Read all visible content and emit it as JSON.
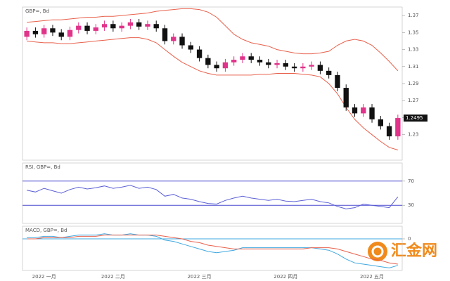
{
  "chart_data": [
    {
      "type": "candlestick",
      "title": "GBP=, Bd",
      "categories": [
        null,
        null,
        "2022 一月",
        null,
        null,
        null,
        null,
        null,
        null,
        null,
        "2022 二月",
        null,
        null,
        null,
        null,
        null,
        null,
        null,
        null,
        null,
        "2022 三月",
        null,
        null,
        null,
        null,
        null,
        null,
        null,
        null,
        null,
        "2022 四月",
        null,
        null,
        null,
        null,
        null,
        null,
        null,
        null,
        null,
        "2022 五月",
        null,
        null,
        null
      ],
      "open": [
        1.345,
        1.352,
        1.348,
        1.355,
        1.35,
        1.345,
        1.353,
        1.358,
        1.352,
        1.356,
        1.36,
        1.355,
        1.358,
        1.362,
        1.357,
        1.36,
        1.355,
        1.34,
        1.345,
        1.335,
        1.33,
        1.32,
        1.312,
        1.308,
        1.315,
        1.318,
        1.322,
        1.318,
        1.315,
        1.312,
        1.314,
        1.31,
        1.308,
        1.31,
        1.312,
        1.305,
        1.3,
        1.285,
        1.262,
        1.255,
        1.262,
        1.248,
        1.24,
        1.228
      ],
      "high": [
        1.356,
        1.356,
        1.359,
        1.359,
        1.354,
        1.357,
        1.362,
        1.362,
        1.36,
        1.364,
        1.364,
        1.362,
        1.366,
        1.366,
        1.364,
        1.364,
        1.359,
        1.349,
        1.349,
        1.339,
        1.334,
        1.324,
        1.316,
        1.319,
        1.322,
        1.326,
        1.326,
        1.322,
        1.319,
        1.318,
        1.318,
        1.314,
        1.314,
        1.316,
        1.316,
        1.309,
        1.304,
        1.289,
        1.266,
        1.266,
        1.266,
        1.252,
        1.244,
        1.2535
      ],
      "low": [
        1.341,
        1.344,
        1.344,
        1.346,
        1.341,
        1.341,
        1.349,
        1.348,
        1.348,
        1.352,
        1.351,
        1.351,
        1.354,
        1.353,
        1.353,
        1.351,
        1.336,
        1.336,
        1.331,
        1.326,
        1.316,
        1.308,
        1.304,
        1.304,
        1.311,
        1.314,
        1.314,
        1.311,
        1.308,
        1.308,
        1.306,
        1.304,
        1.304,
        1.306,
        1.301,
        1.296,
        1.281,
        1.258,
        1.251,
        1.251,
        1.244,
        1.236,
        1.224,
        1.224
      ],
      "close": [
        1.352,
        1.348,
        1.355,
        1.35,
        1.345,
        1.353,
        1.358,
        1.352,
        1.356,
        1.36,
        1.355,
        1.358,
        1.362,
        1.357,
        1.36,
        1.355,
        1.34,
        1.345,
        1.335,
        1.33,
        1.32,
        1.312,
        1.308,
        1.315,
        1.318,
        1.322,
        1.318,
        1.315,
        1.312,
        1.314,
        1.31,
        1.308,
        1.31,
        1.312,
        1.305,
        1.3,
        1.285,
        1.262,
        1.255,
        1.262,
        1.248,
        1.24,
        1.228,
        1.2495
      ],
      "up_color": "#e0338a",
      "down_color": "#111111",
      "last_label": "1.2495",
      "series": [
        {
          "color": "#e8604c",
          "values": [
            1.362,
            1.363,
            1.364,
            1.365,
            1.365,
            1.366,
            1.367,
            1.368,
            1.368,
            1.369,
            1.369,
            1.37,
            1.371,
            1.372,
            1.373,
            1.375,
            1.376,
            1.377,
            1.378,
            1.378,
            1.377,
            1.374,
            1.368,
            1.358,
            1.348,
            1.342,
            1.338,
            1.336,
            1.334,
            1.33,
            1.328,
            1.326,
            1.325,
            1.325,
            1.326,
            1.328,
            1.335,
            1.34,
            1.342,
            1.34,
            1.335,
            1.326,
            1.316,
            1.305
          ]
        },
        {
          "color": "#e8604c",
          "values": [
            1.34,
            1.339,
            1.338,
            1.338,
            1.337,
            1.337,
            1.338,
            1.339,
            1.34,
            1.341,
            1.342,
            1.343,
            1.344,
            1.344,
            1.342,
            1.338,
            1.33,
            1.322,
            1.315,
            1.31,
            1.305,
            1.302,
            1.3,
            1.3,
            1.3,
            1.3,
            1.3,
            1.301,
            1.301,
            1.302,
            1.302,
            1.302,
            1.301,
            1.3,
            1.298,
            1.29,
            1.278,
            1.262,
            1.248,
            1.238,
            1.23,
            1.222,
            1.215,
            1.212
          ]
        }
      ],
      "ylim": [
        1.2,
        1.38
      ],
      "yticks": [
        1.23,
        1.25,
        1.27,
        1.29,
        1.31,
        1.33,
        1.35,
        1.37
      ]
    },
    {
      "type": "line",
      "title": "RSI, GBP=, Bd",
      "series": [
        {
          "color": "#5b5fd6",
          "values": [
            55,
            52,
            58,
            54,
            50,
            56,
            60,
            57,
            59,
            62,
            58,
            60,
            63,
            58,
            60,
            56,
            45,
            48,
            42,
            40,
            36,
            33,
            32,
            38,
            42,
            45,
            42,
            40,
            38,
            40,
            37,
            36,
            38,
            40,
            36,
            34,
            28,
            24,
            26,
            32,
            30,
            28,
            26,
            44
          ]
        }
      ],
      "levels": [
        70,
        30
      ],
      "level_color": "#4a4ad0",
      "ylim": [
        0,
        100
      ],
      "yticks": [
        30,
        70
      ]
    },
    {
      "type": "line",
      "title": "MACD, GBP=, Bd",
      "series": [
        {
          "color": "#3fa8e0",
          "values": [
            0.001,
            0.001,
            0.002,
            0.002,
            0.001,
            0.002,
            0.003,
            0.003,
            0.003,
            0.004,
            0.003,
            0.003,
            0.004,
            0.003,
            0.003,
            0.002,
            -0.001,
            -0.002,
            -0.004,
            -0.006,
            -0.008,
            -0.01,
            -0.011,
            -0.01,
            -0.009,
            -0.007,
            -0.007,
            -0.007,
            -0.007,
            -0.007,
            -0.007,
            -0.007,
            -0.007,
            -0.007,
            -0.008,
            -0.009,
            -0.012,
            -0.016,
            -0.019,
            -0.02,
            -0.021,
            -0.022,
            -0.023,
            -0.021
          ]
        },
        {
          "color": "#e8604c",
          "values": [
            0.0,
            0.0,
            0.001,
            0.001,
            0.001,
            0.001,
            0.002,
            0.002,
            0.002,
            0.003,
            0.003,
            0.003,
            0.003,
            0.003,
            0.003,
            0.003,
            0.002,
            0.001,
            0.0,
            -0.002,
            -0.003,
            -0.005,
            -0.006,
            -0.007,
            -0.008,
            -0.008,
            -0.008,
            -0.008,
            -0.008,
            -0.008,
            -0.008,
            -0.008,
            -0.008,
            -0.007,
            -0.007,
            -0.007,
            -0.008,
            -0.01,
            -0.012,
            -0.014,
            -0.016,
            -0.017,
            -0.019,
            -0.02
          ]
        }
      ],
      "levels": [
        0
      ],
      "level_color": "#3fa8e0",
      "ylim": [
        -0.025,
        0.01
      ],
      "yticks": [
        0
      ]
    }
  ],
  "watermark": "汇金网"
}
